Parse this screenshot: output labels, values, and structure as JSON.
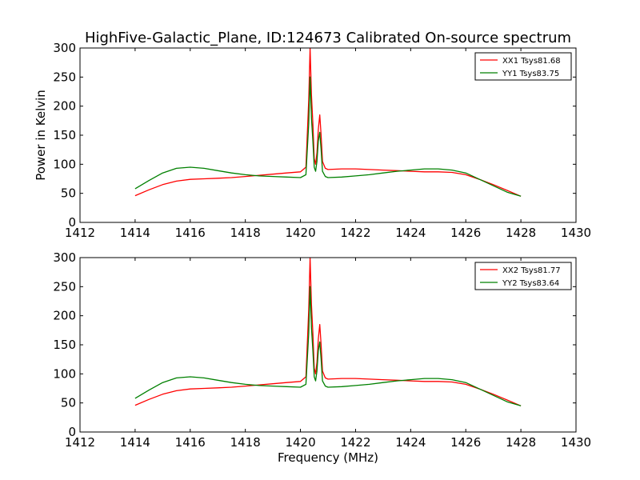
{
  "figure": {
    "title": "HighFive-Galactic_Plane, ID:124673 Calibrated On-source spectrum",
    "xlabel": "Frequency (MHz)",
    "ylabel": "Power in Kelvin"
  },
  "chart_data": [
    {
      "type": "line",
      "title": "HighFive-Galactic_Plane, ID:124673 Calibrated On-source spectrum",
      "xlabel": "",
      "ylabel": "Power in Kelvin",
      "xlim": [
        1412,
        1430
      ],
      "ylim": [
        0,
        300
      ],
      "xticks": [
        1412,
        1414,
        1416,
        1418,
        1420,
        1422,
        1424,
        1426,
        1428,
        1430
      ],
      "yticks": [
        0,
        50,
        100,
        150,
        200,
        250,
        300
      ],
      "grid": false,
      "legend": "top-right",
      "series": [
        {
          "name": "XX1 Tsys81.68",
          "color": "#ff0000",
          "x": [
            1414.0,
            1414.5,
            1415.0,
            1415.5,
            1416.0,
            1416.5,
            1417.0,
            1417.5,
            1418.0,
            1418.5,
            1419.0,
            1419.5,
            1420.0,
            1420.2,
            1420.3,
            1420.35,
            1420.4,
            1420.45,
            1420.5,
            1420.55,
            1420.6,
            1420.65,
            1420.7,
            1420.75,
            1420.8,
            1420.9,
            1421.0,
            1421.5,
            1422.0,
            1422.5,
            1423.0,
            1423.5,
            1424.0,
            1424.5,
            1425.0,
            1425.5,
            1426.0,
            1426.5,
            1427.0,
            1427.5,
            1428.0
          ],
          "y": [
            46,
            56,
            65,
            71,
            74,
            75,
            76,
            77,
            79,
            81,
            83,
            85,
            87,
            95,
            210,
            300,
            220,
            170,
            110,
            100,
            120,
            160,
            185,
            150,
            105,
            93,
            91,
            92,
            92,
            91,
            90,
            89,
            88,
            87,
            87,
            86,
            82,
            74,
            65,
            55,
            45
          ]
        },
        {
          "name": "YY1 Tsys83.75",
          "color": "#008000",
          "x": [
            1414.0,
            1414.5,
            1415.0,
            1415.5,
            1416.0,
            1416.5,
            1417.0,
            1417.5,
            1418.0,
            1418.5,
            1419.0,
            1419.5,
            1420.0,
            1420.2,
            1420.3,
            1420.35,
            1420.4,
            1420.45,
            1420.5,
            1420.55,
            1420.6,
            1420.65,
            1420.7,
            1420.75,
            1420.8,
            1420.9,
            1421.0,
            1421.5,
            1422.0,
            1422.5,
            1423.0,
            1423.5,
            1424.0,
            1424.5,
            1425.0,
            1425.5,
            1426.0,
            1426.5,
            1427.0,
            1427.5,
            1428.0
          ],
          "y": [
            58,
            72,
            85,
            93,
            95,
            93,
            89,
            85,
            82,
            80,
            79,
            78,
            77,
            82,
            170,
            250,
            180,
            140,
            95,
            88,
            105,
            140,
            155,
            125,
            88,
            79,
            77,
            78,
            80,
            82,
            85,
            88,
            90,
            92,
            92,
            90,
            85,
            74,
            63,
            52,
            45
          ]
        }
      ]
    },
    {
      "type": "line",
      "title": "",
      "xlabel": "Frequency (MHz)",
      "ylabel": "",
      "xlim": [
        1412,
        1430
      ],
      "ylim": [
        0,
        300
      ],
      "xticks": [
        1412,
        1414,
        1416,
        1418,
        1420,
        1422,
        1424,
        1426,
        1428,
        1430
      ],
      "yticks": [
        0,
        50,
        100,
        150,
        200,
        250,
        300
      ],
      "grid": false,
      "legend": "top-right",
      "series": [
        {
          "name": "XX2 Tsys81.77",
          "color": "#ff0000",
          "x": [
            1414.0,
            1414.5,
            1415.0,
            1415.5,
            1416.0,
            1416.5,
            1417.0,
            1417.5,
            1418.0,
            1418.5,
            1419.0,
            1419.5,
            1420.0,
            1420.2,
            1420.3,
            1420.35,
            1420.4,
            1420.45,
            1420.5,
            1420.55,
            1420.6,
            1420.65,
            1420.7,
            1420.75,
            1420.8,
            1420.9,
            1421.0,
            1421.5,
            1422.0,
            1422.5,
            1423.0,
            1423.5,
            1424.0,
            1424.5,
            1425.0,
            1425.5,
            1426.0,
            1426.5,
            1427.0,
            1427.5,
            1428.0
          ],
          "y": [
            46,
            56,
            65,
            71,
            74,
            75,
            76,
            77,
            79,
            81,
            83,
            85,
            87,
            95,
            210,
            300,
            220,
            170,
            110,
            100,
            120,
            160,
            185,
            150,
            105,
            93,
            91,
            92,
            92,
            91,
            90,
            89,
            88,
            87,
            87,
            86,
            82,
            74,
            65,
            55,
            45
          ]
        },
        {
          "name": "YY2 Tsys83.64",
          "color": "#008000",
          "x": [
            1414.0,
            1414.5,
            1415.0,
            1415.5,
            1416.0,
            1416.5,
            1417.0,
            1417.5,
            1418.0,
            1418.5,
            1419.0,
            1419.5,
            1420.0,
            1420.2,
            1420.3,
            1420.35,
            1420.4,
            1420.45,
            1420.5,
            1420.55,
            1420.6,
            1420.65,
            1420.7,
            1420.75,
            1420.8,
            1420.9,
            1421.0,
            1421.5,
            1422.0,
            1422.5,
            1423.0,
            1423.5,
            1424.0,
            1424.5,
            1425.0,
            1425.5,
            1426.0,
            1426.5,
            1427.0,
            1427.5,
            1428.0
          ],
          "y": [
            58,
            72,
            85,
            93,
            95,
            93,
            89,
            85,
            82,
            80,
            79,
            78,
            77,
            82,
            170,
            250,
            180,
            140,
            95,
            88,
            105,
            140,
            155,
            125,
            88,
            79,
            77,
            78,
            80,
            82,
            85,
            88,
            90,
            92,
            92,
            90,
            85,
            74,
            63,
            52,
            45
          ]
        }
      ]
    }
  ]
}
